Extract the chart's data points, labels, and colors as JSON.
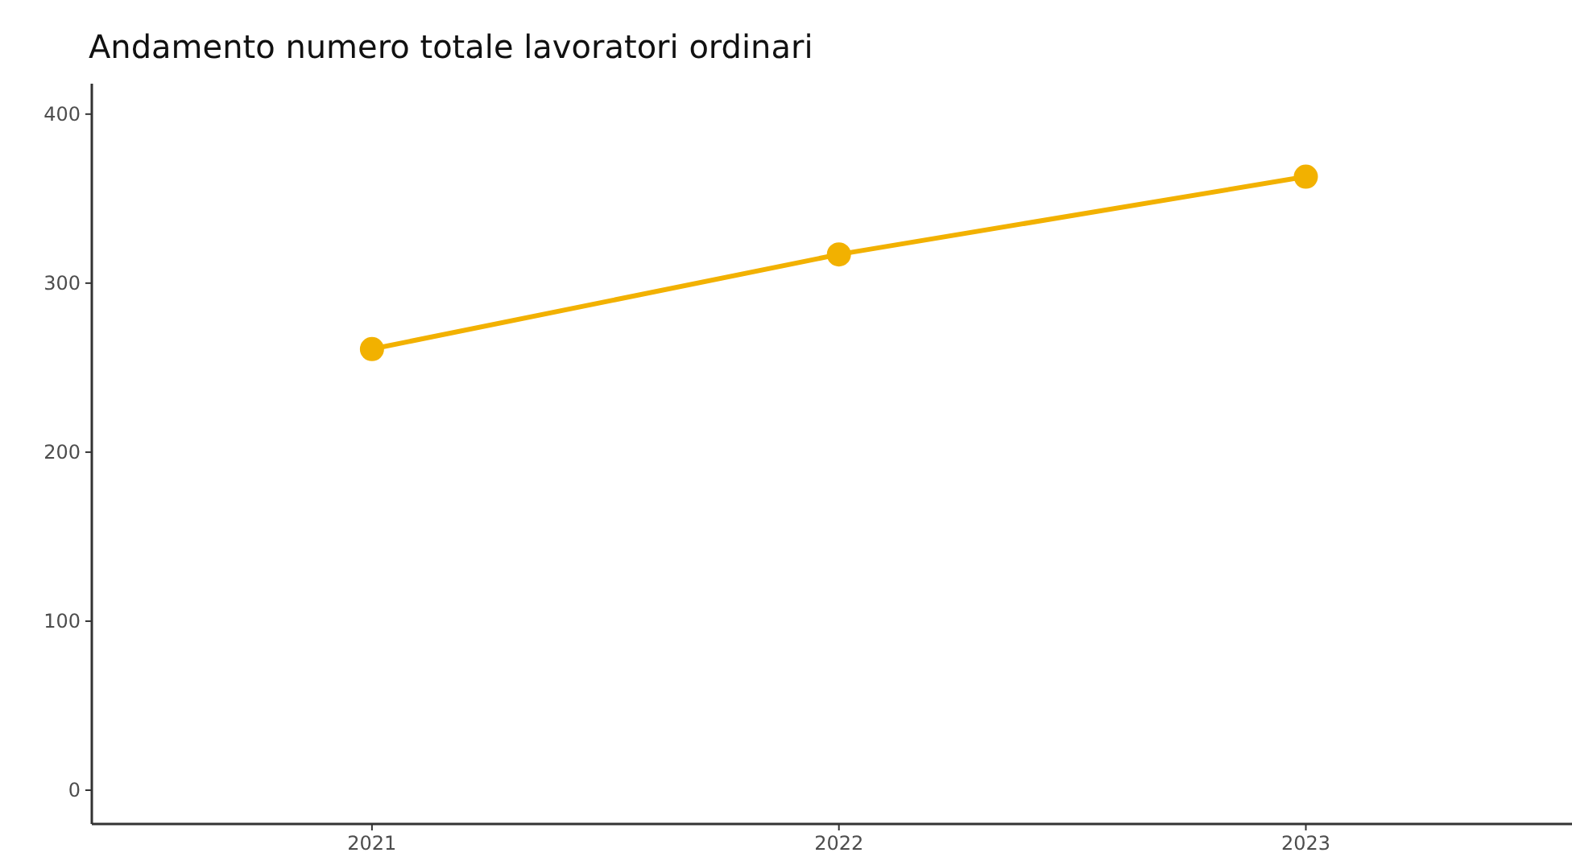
{
  "chart_data": {
    "type": "line",
    "title": "Andamento numero totale lavoratori ordinari",
    "x": [
      2021,
      2022,
      2023
    ],
    "xlim": [
      2020.4,
      2023.57
    ],
    "xticks": [
      2021,
      2022,
      2023
    ],
    "series": [
      {
        "color": "#f2b100",
        "values": [
          261,
          317,
          363
        ]
      }
    ],
    "ylim": [
      -20,
      418
    ],
    "yticks": [
      0,
      100,
      200,
      300,
      400
    ],
    "marker": "circle",
    "line_style": "solid",
    "grid": false
  }
}
